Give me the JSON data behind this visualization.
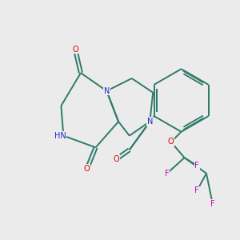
{
  "background_color": "#ebebeb",
  "bond_color": "#2d7a6b",
  "nitrogen_color": "#2222cc",
  "oxygen_color": "#dd0000",
  "fluorine_color": "#cc00cc",
  "line_width": 1.4,
  "figsize": [
    3.0,
    3.0
  ],
  "dpi": 100,
  "xlim": [
    0,
    10
  ],
  "ylim": [
    0,
    10
  ]
}
